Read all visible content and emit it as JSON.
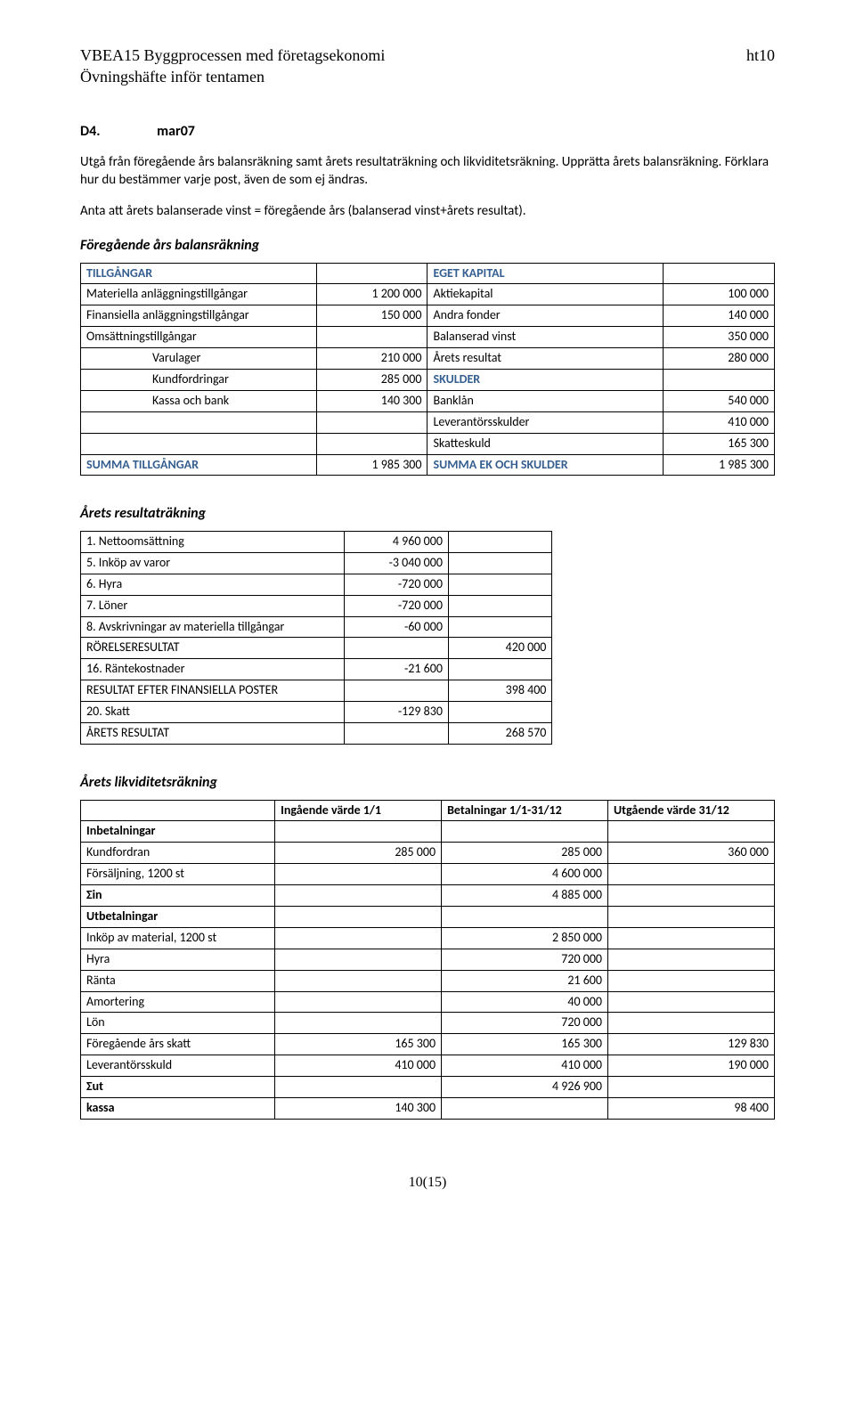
{
  "header": {
    "course": "VBEA15 Byggprocessen med företagsekonomi",
    "term": "ht10",
    "subtitle": "Övningshäfte inför tentamen"
  },
  "title": {
    "num": "D4.",
    "name": "mar07"
  },
  "intro": {
    "p1": "Utgå från föregående års balansräkning samt årets resultaträkning och likviditetsräkning. Upprätta årets balansräkning. Förklara hur du bestämmer varje post, även de som ej ändras.",
    "p2": "Anta att årets balanserade vinst = föregående års (balanserad vinst+årets resultat)."
  },
  "balance": {
    "heading": "Föregående års balansräkning",
    "left_head": "TILLGÅNGAR",
    "right_head": "EGET KAPITAL",
    "rows": [
      {
        "l": "Materiella anläggningstillgångar",
        "lv": "1 200 000",
        "r": "Aktiekapital",
        "rv": "100 000"
      },
      {
        "l": "Finansiella anläggningstillgångar",
        "lv": "150 000",
        "r": "Andra fonder",
        "rv": "140 000"
      },
      {
        "l": "Omsättningstillgångar",
        "lv": "",
        "r": "Balanserad vinst",
        "rv": "350 000"
      },
      {
        "l": "Varulager",
        "indent": true,
        "lv": "210 000",
        "r": "Årets resultat",
        "rv": "280 000"
      },
      {
        "l": "Kundfordringar",
        "indent": true,
        "lv": "285 000",
        "r": "SKULDER",
        "rblue": true,
        "rv": ""
      },
      {
        "l": "Kassa och bank",
        "indent": true,
        "lv": "140 300",
        "r": "Banklån",
        "rv": "540 000"
      },
      {
        "l": "",
        "lv": "",
        "r": "Leverantörsskulder",
        "rv": "410 000"
      },
      {
        "l": "",
        "lv": "",
        "r": "Skatteskuld",
        "rv": "165 300"
      }
    ],
    "sum_l": "SUMMA TILLGÅNGAR",
    "sum_lv": "1 985 300",
    "sum_r": "SUMMA EK OCH SKULDER",
    "sum_rv": "1 985 300"
  },
  "income": {
    "heading": "Årets resultaträkning",
    "rows": [
      {
        "label": "1. Nettoomsättning",
        "c2": "4 960 000",
        "c3": ""
      },
      {
        "label": "5. Inköp av varor",
        "c2": "-3 040 000",
        "c3": ""
      },
      {
        "label": "6. Hyra",
        "c2": "-720 000",
        "c3": ""
      },
      {
        "label": "7. Löner",
        "c2": "-720 000",
        "c3": ""
      },
      {
        "label": "8. Avskrivningar av materiella tillgångar",
        "c2": "-60 000",
        "c3": ""
      },
      {
        "label": "RÖRELSERESULTAT",
        "c2": "",
        "c3": "420 000"
      },
      {
        "label": "16. Räntekostnader",
        "c2": "-21 600",
        "c3": ""
      },
      {
        "label": "RESULTAT EFTER FINANSIELLA POSTER",
        "c2": "",
        "c3": "398 400"
      },
      {
        "label": "20. Skatt",
        "c2": "-129 830",
        "c3": ""
      },
      {
        "label": "ÅRETS RESULTAT",
        "c2": "",
        "c3": "268 570"
      }
    ]
  },
  "liquidity": {
    "heading": "Årets likviditetsräkning",
    "col_headers": {
      "c1": "",
      "c2": "Ingående värde 1/1",
      "c3": "Betalningar 1/1-31/12",
      "c4": "Utgående värde 31/12"
    },
    "rows": [
      {
        "c1": "Inbetalningar",
        "bold": true,
        "c2": "",
        "c3": "",
        "c4": ""
      },
      {
        "c1": "Kundfordran",
        "c2": "285 000",
        "c3": "285 000",
        "c4": "360 000"
      },
      {
        "c1": "Försäljning, 1200 st",
        "c2": "",
        "c3": "4 600 000",
        "c4": ""
      },
      {
        "c1": "Σin",
        "bold": true,
        "c2": "",
        "c3": "4 885 000",
        "c4": ""
      },
      {
        "c1": "Utbetalningar",
        "bold": true,
        "c2": "",
        "c3": "",
        "c4": ""
      },
      {
        "c1": "Inköp av material, 1200 st",
        "c2": "",
        "c3": "2 850 000",
        "c4": ""
      },
      {
        "c1": "Hyra",
        "c2": "",
        "c3": "720 000",
        "c4": ""
      },
      {
        "c1": "Ränta",
        "c2": "",
        "c3": "21 600",
        "c4": ""
      },
      {
        "c1": "Amortering",
        "c2": "",
        "c3": "40 000",
        "c4": ""
      },
      {
        "c1": "Lön",
        "c2": "",
        "c3": "720 000",
        "c4": ""
      },
      {
        "c1": "Föregående års skatt",
        "c2": "165 300",
        "c3": "165 300",
        "c4": "129 830"
      },
      {
        "c1": "Leverantörsskuld",
        "c2": "410 000",
        "c3": "410 000",
        "c4": "190 000"
      },
      {
        "c1": "Σut",
        "bold": true,
        "c2": "",
        "c3": "4 926 900",
        "c4": ""
      },
      {
        "c1": "kassa",
        "bold": true,
        "c2": "140 300",
        "c3": "",
        "c4": "98 400"
      }
    ]
  },
  "page_number": "10(15)"
}
